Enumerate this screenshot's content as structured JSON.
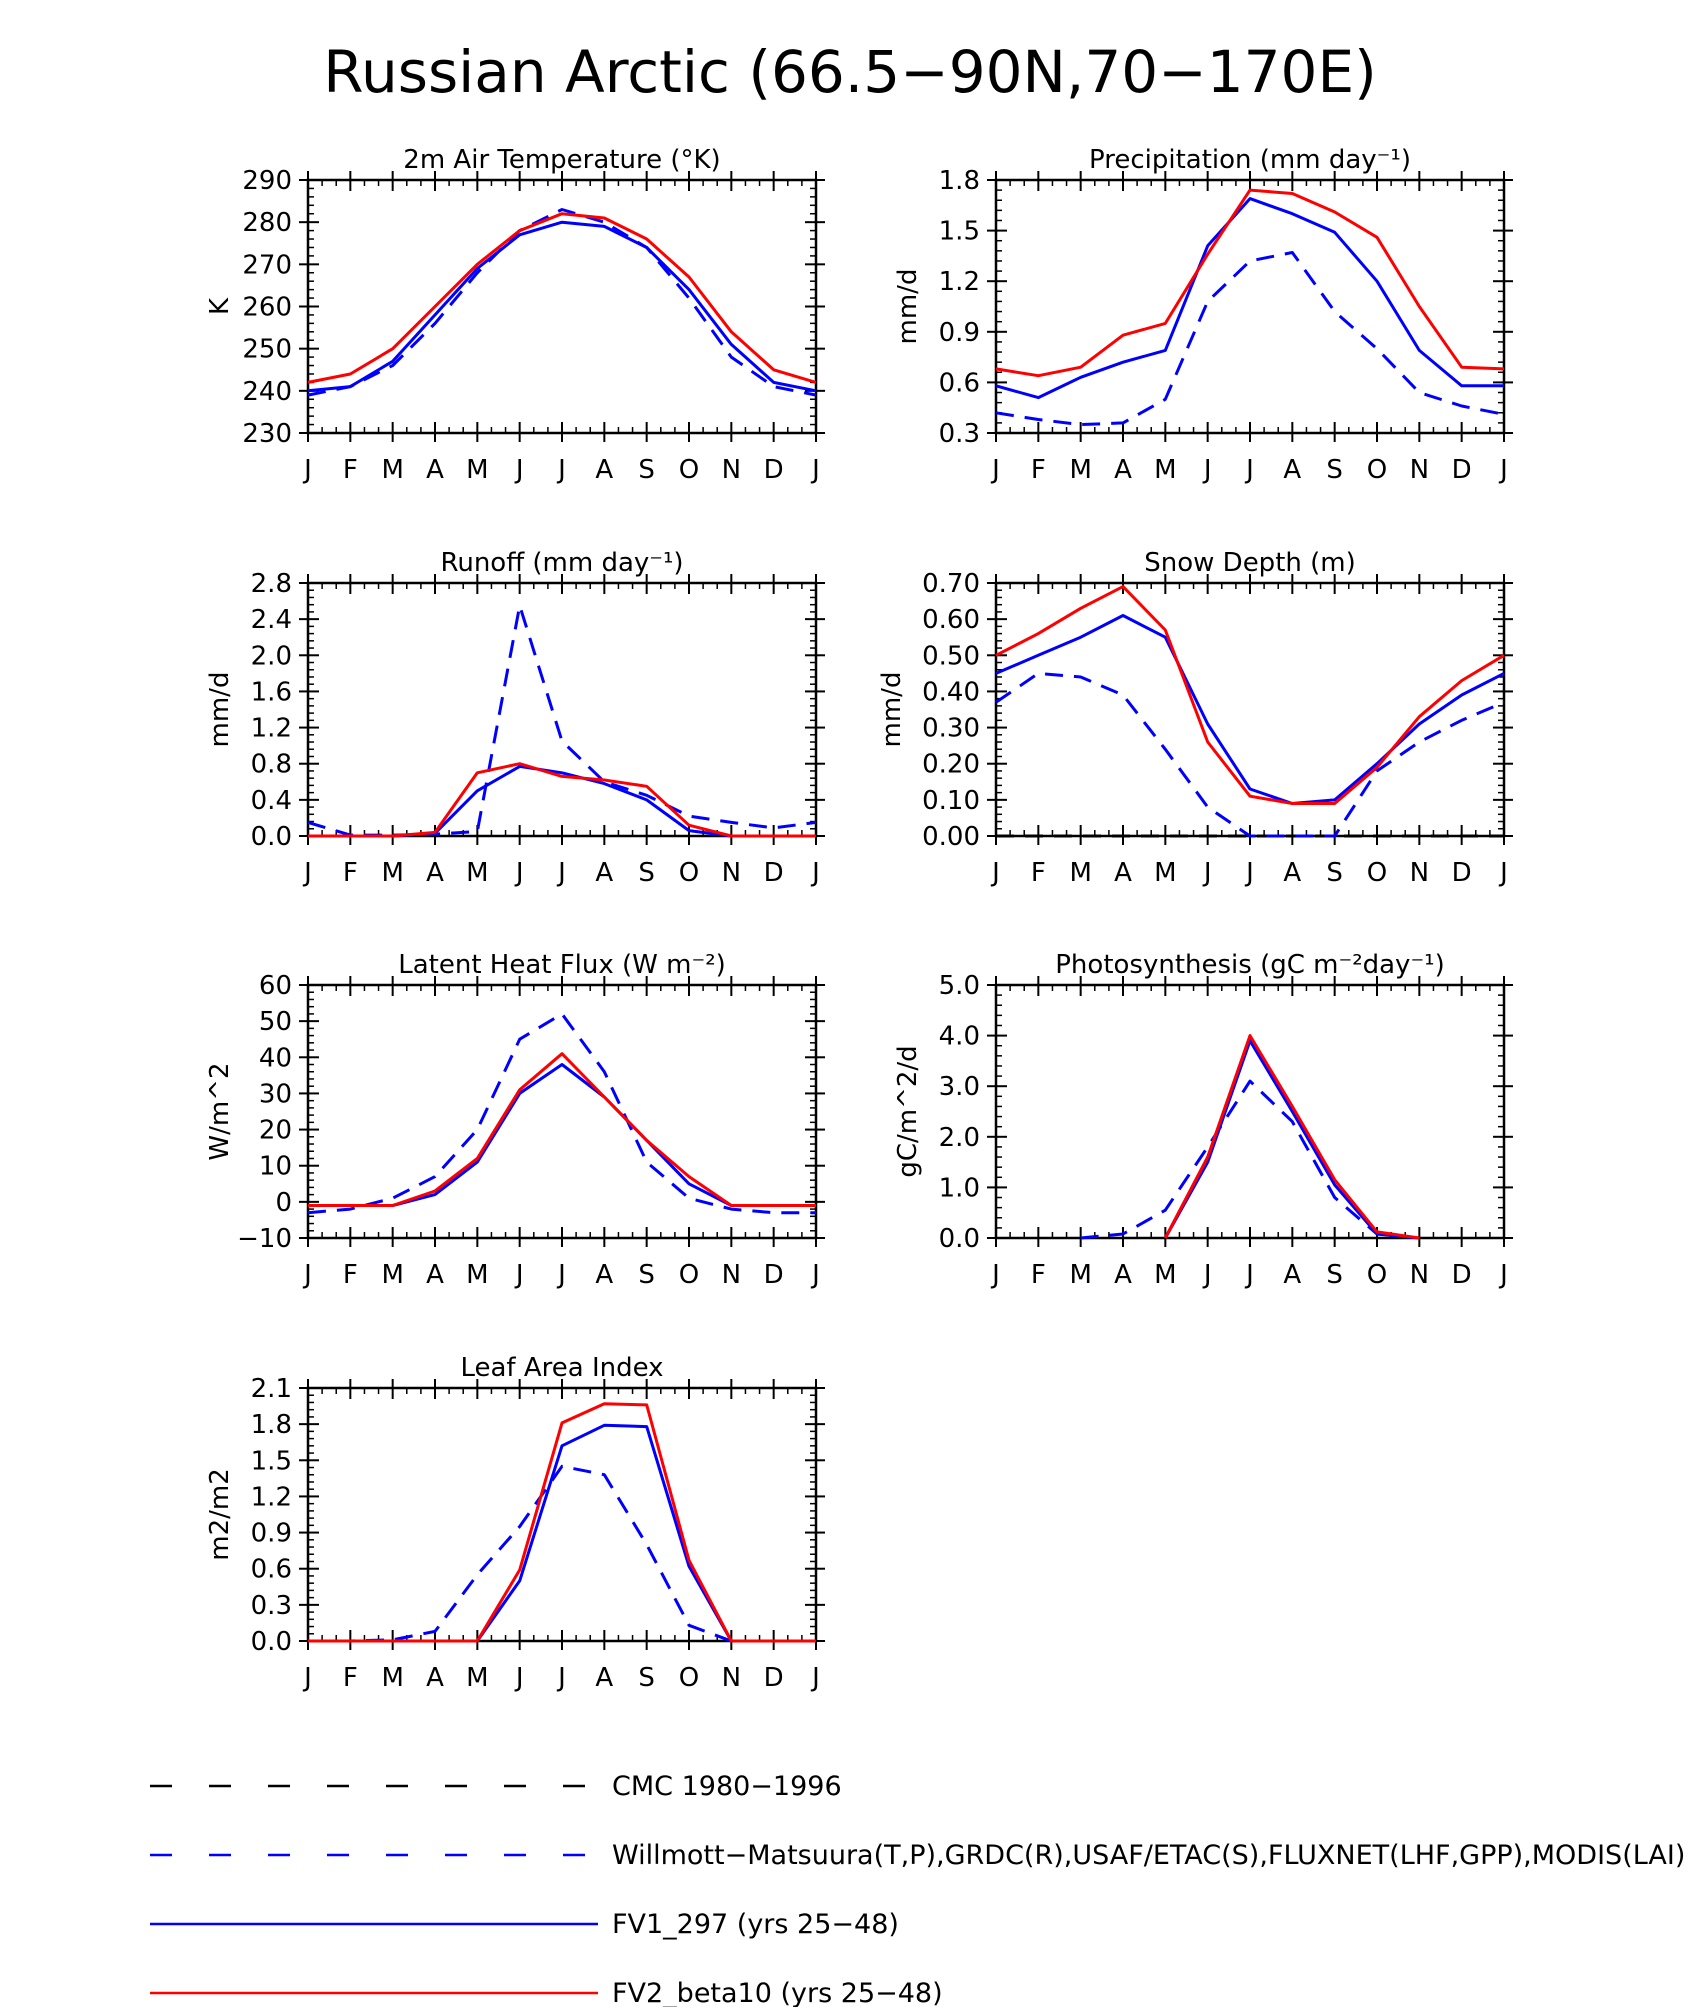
{
  "figure": {
    "title": "Russian Arctic (66.5−90N,70−170E)",
    "months": [
      "J",
      "F",
      "M",
      "A",
      "M",
      "J",
      "J",
      "A",
      "S",
      "O",
      "N",
      "D",
      "J"
    ]
  },
  "colors": {
    "cmc": "#000000",
    "obs": "#0000ff",
    "fv1": "#0000ff",
    "fv2": "#ff0000"
  },
  "legend": {
    "items": [
      {
        "id": "cmc",
        "label": "CMC 1980−1996",
        "style": "dashed",
        "color": "#000000"
      },
      {
        "id": "obs",
        "label": "Willmott−Matsuura(T,P),GRDC(R),USAF/ETAC(S),FLUXNET(LHF,GPP),MODIS(LAI)",
        "style": "dashed",
        "color": "#0000ff"
      },
      {
        "id": "fv1",
        "label": "FV1_297 (yrs 25−48)",
        "style": "solid",
        "color": "#0000ff"
      },
      {
        "id": "fv2",
        "label": "FV2_beta10 (yrs 25−48)",
        "style": "solid",
        "color": "#ff0000"
      }
    ]
  },
  "chart_data": [
    {
      "id": "tsa",
      "type": "line",
      "title": "2m Air Temperature (°K)",
      "ylabel": "K",
      "ylim": [
        230,
        290
      ],
      "yticks": [
        230,
        240,
        250,
        260,
        270,
        280,
        290
      ],
      "ytick_labels": [
        "230",
        "240",
        "250",
        "260",
        "270",
        "280",
        "290"
      ],
      "series": [
        {
          "name": "obs",
          "style": "dashed",
          "values": [
            239,
            241,
            246,
            256,
            268,
            278,
            283,
            280,
            274,
            262,
            248,
            241,
            239
          ]
        },
        {
          "name": "fv1",
          "style": "solid",
          "values": [
            240,
            241,
            247,
            258,
            269,
            277,
            280,
            279,
            274,
            264,
            251,
            242,
            240
          ]
        },
        {
          "name": "fv2",
          "style": "solid",
          "values": [
            242,
            244,
            250,
            260,
            270,
            278,
            282,
            281,
            276,
            267,
            254,
            245,
            242
          ]
        }
      ]
    },
    {
      "id": "prect",
      "type": "line",
      "title": "Precipitation (mm day⁻¹)",
      "ylabel": "mm/d",
      "ylim": [
        0.3,
        1.8
      ],
      "yticks": [
        0.3,
        0.6,
        0.9,
        1.2,
        1.5,
        1.8
      ],
      "ytick_labels": [
        "0.3",
        "0.6",
        "0.9",
        "1.2",
        "1.5",
        "1.8"
      ],
      "series": [
        {
          "name": "obs",
          "style": "dashed",
          "values": [
            0.42,
            0.38,
            0.35,
            0.36,
            0.5,
            1.08,
            1.32,
            1.37,
            1.02,
            0.8,
            0.54,
            0.46,
            0.41
          ]
        },
        {
          "name": "fv1",
          "style": "solid",
          "values": [
            0.58,
            0.51,
            0.63,
            0.72,
            0.79,
            1.41,
            1.69,
            1.6,
            1.49,
            1.2,
            0.79,
            0.58,
            0.58
          ]
        },
        {
          "name": "fv2",
          "style": "solid",
          "values": [
            0.68,
            0.64,
            0.69,
            0.88,
            0.95,
            1.36,
            1.74,
            1.72,
            1.61,
            1.46,
            1.05,
            0.69,
            0.68
          ]
        }
      ]
    },
    {
      "id": "runoff",
      "type": "line",
      "title": "Runoff (mm day⁻¹)",
      "ylabel": "mm/d",
      "ylim": [
        0,
        2.8
      ],
      "yticks": [
        0,
        0.4,
        0.8,
        1.2,
        1.6,
        2.0,
        2.4,
        2.8
      ],
      "ytick_labels": [
        "0.0",
        "0.4",
        "0.8",
        "1.2",
        "1.6",
        "2.0",
        "2.4",
        "2.8"
      ],
      "series": [
        {
          "name": "obs",
          "style": "dashed",
          "values": [
            0.15,
            0.01,
            0.01,
            0.02,
            0.05,
            2.55,
            1.05,
            0.6,
            0.45,
            0.22,
            0.15,
            0.09,
            0.15
          ]
        },
        {
          "name": "fv1",
          "style": "solid",
          "values": [
            0,
            0,
            0,
            0.03,
            0.5,
            0.77,
            0.7,
            0.58,
            0.4,
            0.06,
            0,
            0,
            0
          ]
        },
        {
          "name": "fv2",
          "style": "solid",
          "values": [
            0,
            0,
            0,
            0.04,
            0.7,
            0.8,
            0.66,
            0.62,
            0.55,
            0.12,
            0,
            0,
            0
          ]
        }
      ]
    },
    {
      "id": "snowdp",
      "type": "line",
      "title": "Snow Depth (m)",
      "ylabel": "mm/d",
      "ylim": [
        0,
        0.7
      ],
      "yticks": [
        0,
        0.1,
        0.2,
        0.3,
        0.4,
        0.5,
        0.6,
        0.7
      ],
      "ytick_labels": [
        "0.00",
        "0.10",
        "0.20",
        "0.30",
        "0.40",
        "0.50",
        "0.60",
        "0.70"
      ],
      "series": [
        {
          "name": "cmc",
          "style": "dashed",
          "values": [
            0,
            0,
            0,
            0,
            0,
            0,
            0,
            0,
            0,
            0,
            0,
            0,
            0
          ]
        },
        {
          "name": "obs",
          "style": "dashed",
          "values": [
            0.37,
            0.45,
            0.44,
            0.39,
            0.24,
            0.08,
            0.0,
            0.0,
            0.0,
            0.18,
            0.26,
            0.32,
            0.37
          ]
        },
        {
          "name": "fv1",
          "style": "solid",
          "values": [
            0.45,
            0.5,
            0.55,
            0.61,
            0.55,
            0.31,
            0.13,
            0.09,
            0.1,
            0.2,
            0.31,
            0.39,
            0.45
          ]
        },
        {
          "name": "fv2",
          "style": "solid",
          "values": [
            0.5,
            0.56,
            0.63,
            0.69,
            0.57,
            0.26,
            0.11,
            0.09,
            0.09,
            0.19,
            0.33,
            0.43,
            0.5
          ]
        }
      ]
    },
    {
      "id": "lhf",
      "type": "line",
      "title": "Latent Heat Flux (W m⁻²)",
      "ylabel": "W/m^2",
      "ylim": [
        -10,
        60
      ],
      "yticks": [
        -10,
        0,
        10,
        20,
        30,
        40,
        50,
        60
      ],
      "ytick_labels": [
        "−10",
        "0",
        "10",
        "20",
        "30",
        "40",
        "50",
        "60"
      ],
      "series": [
        {
          "name": "obs",
          "style": "dashed",
          "values": [
            -3,
            -2,
            1,
            7,
            20,
            45,
            52,
            36,
            11,
            1,
            -2,
            -3,
            -3
          ]
        },
        {
          "name": "fv1",
          "style": "solid",
          "values": [
            -1,
            -1,
            -1,
            2,
            11,
            30,
            38,
            29,
            17,
            5,
            -1,
            -1,
            -1
          ]
        },
        {
          "name": "fv2",
          "style": "solid",
          "values": [
            -1,
            -1,
            -1,
            3,
            12,
            31,
            41,
            29,
            17,
            7,
            -1,
            -1,
            -1
          ]
        }
      ]
    },
    {
      "id": "gpp",
      "type": "line",
      "title": "Photosynthesis (gC m⁻²day⁻¹)",
      "ylabel": "gC/m^2/d",
      "ylim": [
        0,
        5
      ],
      "yticks": [
        0,
        1,
        2,
        3,
        4,
        5
      ],
      "ytick_labels": [
        "0.0",
        "1.0",
        "2.0",
        "3.0",
        "4.0",
        "5.0"
      ],
      "series": [
        {
          "name": "obs",
          "style": "dashed",
          "values": [
            null,
            null,
            0.0,
            0.08,
            0.55,
            1.8,
            3.1,
            2.3,
            0.8,
            0.08,
            0,
            null,
            null
          ]
        },
        {
          "name": "fv1",
          "style": "solid",
          "values": [
            null,
            null,
            null,
            null,
            0.0,
            1.5,
            3.9,
            2.5,
            1.05,
            0.08,
            0,
            null,
            null
          ]
        },
        {
          "name": "fv2",
          "style": "solid",
          "values": [
            null,
            null,
            null,
            null,
            0.0,
            1.6,
            4.0,
            2.6,
            1.15,
            0.12,
            0,
            null,
            null
          ]
        }
      ]
    },
    {
      "id": "lai",
      "type": "line",
      "title": "Leaf Area Index",
      "ylabel": "m2/m2",
      "ylim": [
        0,
        2.1
      ],
      "yticks": [
        0,
        0.3,
        0.6,
        0.9,
        1.2,
        1.5,
        1.8,
        2.1
      ],
      "ytick_labels": [
        "0.0",
        "0.3",
        "0.6",
        "0.9",
        "1.2",
        "1.5",
        "1.8",
        "2.1"
      ],
      "series": [
        {
          "name": "obs",
          "style": "dashed",
          "values": [
            0,
            0,
            0.01,
            0.08,
            0.55,
            0.95,
            1.45,
            1.38,
            0.8,
            0.13,
            0,
            0,
            0
          ]
        },
        {
          "name": "fv1",
          "style": "solid",
          "values": [
            0,
            0,
            0,
            0,
            0,
            0.5,
            1.62,
            1.79,
            1.78,
            0.62,
            0,
            0,
            0
          ]
        },
        {
          "name": "fv2",
          "style": "solid",
          "values": [
            0,
            0,
            0,
            0,
            0,
            0.59,
            1.81,
            1.97,
            1.96,
            0.67,
            0,
            0,
            0
          ]
        }
      ]
    }
  ]
}
